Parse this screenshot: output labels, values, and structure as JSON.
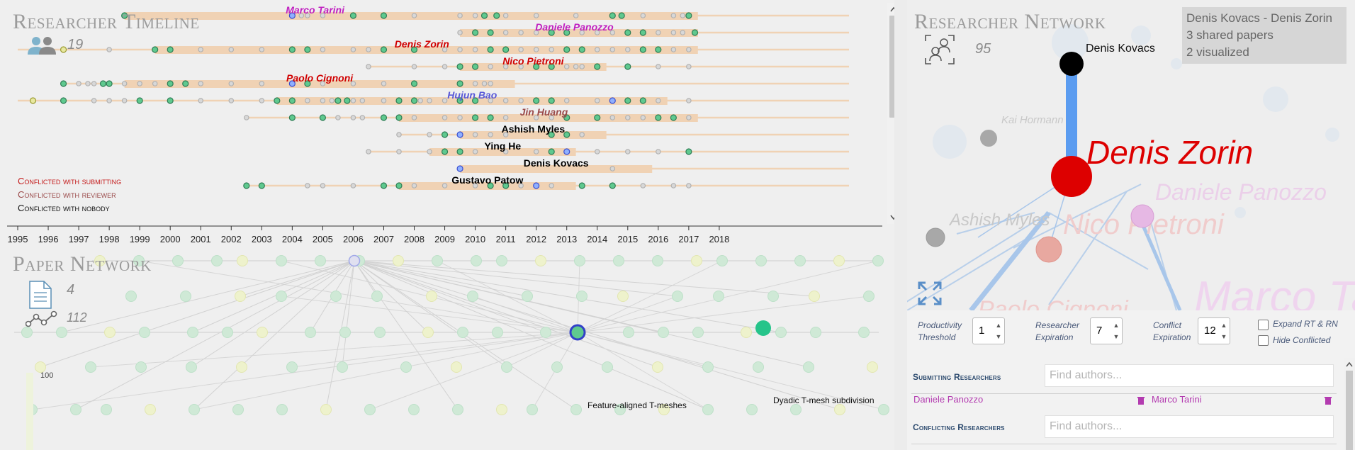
{
  "timeline": {
    "title": "Researcher Timeline",
    "researcher_count": "19",
    "years": [
      "1995",
      "1996",
      "1997",
      "1998",
      "1999",
      "2000",
      "2001",
      "2002",
      "2003",
      "2004",
      "2005",
      "2006",
      "2007",
      "2008",
      "2009",
      "2010",
      "2011",
      "2012",
      "2013",
      "2014",
      "2015",
      "2016",
      "2017",
      "2018"
    ],
    "legend": {
      "submitting": "Conflicted with submitting",
      "reviewer": "Conflicted with reviewer",
      "nobody": "Conflicted with nobody"
    },
    "rows": [
      {
        "name": "Marco Tarini",
        "kind": "submitting",
        "bar_start": 1998.5,
        "bar_end": 2017.3,
        "line_start": 1998.5,
        "papers": [
          1998.5,
          2004.0,
          2004.3,
          2004.5,
          2005.0,
          2006.0,
          2007.0,
          2008.0,
          2009.5,
          2010.0,
          2010.3,
          2010.7,
          2011.0,
          2012.0,
          2013.3,
          2014.5,
          2014.8,
          2015.5,
          2016.5,
          2016.8,
          2017.0
        ]
      },
      {
        "name": "Daniele Panozzo",
        "kind": "submitting",
        "bar_start": 2009.5,
        "bar_end": 2017.3,
        "line_start": 2009.5,
        "papers": [
          2009.5,
          2010.0,
          2010.5,
          2011.0,
          2011.5,
          2012.0,
          2012.5,
          2013.0,
          2013.5,
          2014.0,
          2014.5,
          2015.0,
          2015.5,
          2016.0,
          2016.5,
          2016.8,
          2017.2
        ]
      },
      {
        "name": "Denis Zorin",
        "kind": "reviewer-self",
        "bar_start": 1999.5,
        "bar_end": 2017.3,
        "line_start": 1995.0,
        "papers": [
          1996.5,
          1998.0,
          1999.5,
          2000.0,
          2001.0,
          2002.0,
          2003.0,
          2004.0,
          2004.5,
          2005.0,
          2006.0,
          2006.5,
          2007.0,
          2008.0,
          2009.0,
          2009.5,
          2010.0,
          2010.5,
          2011.0,
          2011.5,
          2012.0,
          2012.5,
          2013.0,
          2013.5,
          2014.0,
          2014.5,
          2015.0,
          2015.5,
          2016.0,
          2016.5,
          2017.0
        ]
      },
      {
        "name": "Nico Pietroni",
        "kind": "submitting",
        "bar_start": 2009.5,
        "bar_end": 2014.3,
        "line_start": 2006.5,
        "papers": [
          2006.5,
          2008.0,
          2009.0,
          2009.5,
          2010.0,
          2010.5,
          2011.0,
          2011.5,
          2012.0,
          2012.5,
          2013.0,
          2013.3,
          2013.5,
          2014.0,
          2015.0,
          2016.0,
          2017.0
        ]
      },
      {
        "name": "Paolo Cignoni",
        "kind": "submitting",
        "bar_start": 1998.5,
        "bar_end": 2011.3,
        "line_start": 1996.5,
        "papers": [
          1996.5,
          1997.0,
          1997.3,
          1997.5,
          1997.8,
          1998.0,
          1998.5,
          1999.0,
          1999.5,
          2000.0,
          2000.5,
          2001.0,
          2002.0,
          2003.0,
          2004.0,
          2004.5,
          2005.0,
          2006.0,
          2007.0,
          2008.0,
          2009.5,
          2010.0,
          2010.3,
          2010.5
        ]
      },
      {
        "name": "Hujun Bao",
        "kind": "bao",
        "bar_start": 2003.5,
        "bar_end": 2016.3,
        "line_start": 1995.0,
        "papers": [
          1995.5,
          1996.5,
          1997.5,
          1998.0,
          1998.5,
          1999.0,
          2000.0,
          2001.0,
          2002.0,
          2003.0,
          2003.5,
          2004.0,
          2004.5,
          2005.0,
          2005.3,
          2005.5,
          2005.8,
          2006.0,
          2006.3,
          2007.0,
          2007.5,
          2008.0,
          2008.2,
          2008.5,
          2009.0,
          2009.5,
          2010.0,
          2010.5,
          2011.0,
          2011.5,
          2012.0,
          2012.5,
          2013.0,
          2014.0,
          2014.5,
          2015.0,
          2015.5,
          2016.0,
          2017.0
        ]
      },
      {
        "name": "Jin Huang",
        "kind": "reviewer",
        "bar_start": 2007.5,
        "bar_end": 2017.3,
        "line_start": 2002.5,
        "papers": [
          2002.5,
          2004.0,
          2005.0,
          2005.5,
          2006.0,
          2006.3,
          2007.0,
          2007.5,
          2008.0,
          2009.0,
          2009.5,
          2010.0,
          2010.5,
          2011.0,
          2012.0,
          2012.5,
          2013.0,
          2014.0,
          2014.5,
          2015.0,
          2015.5,
          2016.0,
          2016.5,
          2017.0
        ]
      },
      {
        "name": "Ashish Myles",
        "kind": "nobody",
        "bar_start": 2009.5,
        "bar_end": 2014.3,
        "line_start": 2007.5,
        "papers": [
          2007.5,
          2008.5,
          2009.0,
          2009.5,
          2010.0,
          2010.5,
          2011.0,
          2012.5,
          2013.0,
          2013.5
        ]
      },
      {
        "name": "Ying He",
        "kind": "nobody",
        "bar_start": 2008.5,
        "bar_end": 2013.3,
        "line_start": 2006.5,
        "papers": [
          2006.5,
          2007.5,
          2008.5,
          2009.0,
          2009.5,
          2010.0,
          2011.0,
          2012.0,
          2012.5,
          2013.0,
          2014.0,
          2015.0,
          2016.0,
          2017.0
        ]
      },
      {
        "name": "Denis Kovacs",
        "kind": "nobody",
        "bar_start": 2009.5,
        "bar_end": 2015.8,
        "line_start": 2009.5,
        "papers": [
          2009.5,
          2014.5
        ]
      },
      {
        "name": "Gustavo Patow",
        "kind": "nobody",
        "bar_start": 2007.5,
        "bar_end": 2013.3,
        "line_start": 2002.5,
        "papers": [
          2002.5,
          2003.0,
          2004.5,
          2005.0,
          2006.0,
          2007.0,
          2007.5,
          2008.0,
          2009.0,
          2010.0,
          2010.5,
          2011.0,
          2011.5,
          2012.0,
          2012.5,
          2013.5,
          2014.5,
          2015.5,
          2016.5,
          2017.0
        ]
      }
    ]
  },
  "paper_network": {
    "title": "Paper Network",
    "paper_count": "4",
    "edge_count": "112",
    "scale_label": "100",
    "highlighted_papers": [
      {
        "title": "Feature-aligned T-meshes",
        "ring": "#3240c8",
        "fill": "#5fc98f"
      },
      {
        "title": "Dyadic T-mesh subdivision",
        "ring": "#26c48a",
        "fill": "#26c48a"
      }
    ]
  },
  "researcher_network": {
    "title": "Researcher Network",
    "node_count": "95",
    "info": {
      "title": "Denis Kovacs - Denis Zorin",
      "shared": "3 shared papers",
      "visualized": "2 visualized"
    },
    "focus_nodes": [
      "Denis Kovacs",
      "Denis Zorin"
    ],
    "background_labels": [
      "Kai Hormann",
      "Daniele Panozzo",
      "Ashish Myles",
      "Nico Pietroni",
      "Paolo Cignoni",
      "Marco Ta"
    ],
    "colors": {
      "zorin": "#dd0000",
      "kovacs": "#000000",
      "link": "#5b9cf0"
    }
  },
  "controls": {
    "productivity_label": [
      "Productivity",
      "Threshold"
    ],
    "productivity_value": "1",
    "expiration_label": [
      "Researcher",
      "Expiration"
    ],
    "expiration_value": "7",
    "conflict_label": [
      "Conflict",
      "Expiration"
    ],
    "conflict_value": "12",
    "expand_label": "Expand RT & RN",
    "hide_label": "Hide Conflicted",
    "submitting_head": "Submitting Researchers",
    "conflicting_head": "Conflicting Researchers",
    "find_placeholder": "Find authors...",
    "submitting_chips": [
      "Daniele Panozzo",
      "Marco Tarini"
    ]
  },
  "colors": {
    "submitting": "#d00000",
    "reviewer": "#9a4a4a",
    "nobody": "#000000",
    "marco": "#c020c0",
    "bao": "#5858d8",
    "bar": "#f0d2b4",
    "dot_green": "#5fc98f",
    "dot_blue": "#3a4fd0",
    "dot_yellow": "#e8e8a0"
  }
}
